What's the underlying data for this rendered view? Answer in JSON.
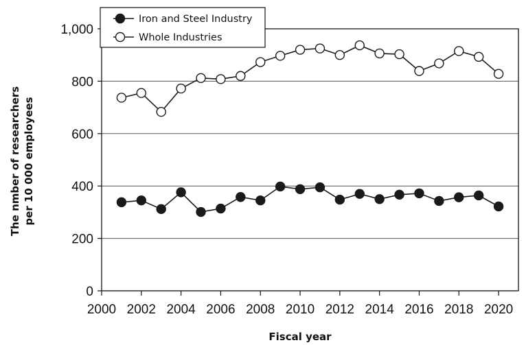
{
  "chart_data": {
    "type": "line",
    "title": "",
    "xlabel": "Fiscal year",
    "ylabel_lines": [
      "The nmber of researchers",
      "per 10 000 employees"
    ],
    "xlim": [
      2000,
      2021
    ],
    "ylim": [
      0,
      1000
    ],
    "x_ticks": [
      2000,
      2002,
      2004,
      2006,
      2008,
      2010,
      2012,
      2014,
      2016,
      2018,
      2020
    ],
    "y_ticks": [
      0,
      200,
      400,
      600,
      800,
      1000
    ],
    "y_tick_labels": [
      "0",
      "200",
      "400",
      "600",
      "800",
      "1,000"
    ],
    "gridlines_y": [
      200,
      400,
      600,
      800
    ],
    "legend_position": "top-left",
    "series": [
      {
        "name": "Iron and Steel Industry",
        "marker": "filled-circle",
        "color": "#1a1a1a",
        "x": [
          2001,
          2002,
          2003,
          2004,
          2005,
          2006,
          2007,
          2008,
          2009,
          2010,
          2011,
          2012,
          2013,
          2014,
          2015,
          2016,
          2017,
          2018,
          2019,
          2020
        ],
        "y": [
          338,
          345,
          312,
          376,
          301,
          314,
          358,
          345,
          398,
          388,
          395,
          348,
          370,
          350,
          367,
          372,
          343,
          357,
          364,
          322
        ]
      },
      {
        "name": "Whole Industries",
        "marker": "open-circle",
        "color": "#1a1a1a",
        "x": [
          2001,
          2002,
          2003,
          2004,
          2005,
          2006,
          2007,
          2008,
          2009,
          2010,
          2011,
          2012,
          2013,
          2014,
          2015,
          2016,
          2017,
          2018,
          2019,
          2020
        ],
        "y": [
          737,
          755,
          683,
          772,
          812,
          808,
          820,
          873,
          897,
          920,
          925,
          900,
          937,
          906,
          903,
          839,
          868,
          915,
          893,
          828
        ]
      }
    ]
  }
}
